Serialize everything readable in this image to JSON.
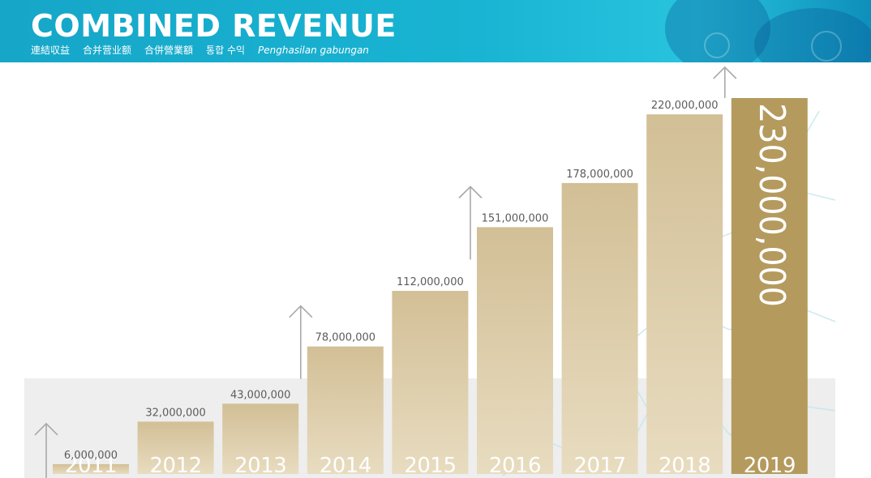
{
  "header": {
    "title": "COMBINED REVENUE",
    "subtitles": [
      "連結収益",
      "合并营业额",
      "合併營業額",
      "통합 수익",
      "Penghasilan gabungan"
    ]
  },
  "colors": {
    "banner": "#19b4d3",
    "bar_light": "#e8dcc0",
    "bar_dark": "#d2bf96",
    "highlight_bar": "#b59a5e",
    "label_text": "#5c5c5c",
    "year_text": "#ffffff",
    "band": "#eeeeee"
  },
  "chart_data": {
    "type": "bar",
    "title": "COMBINED REVENUE",
    "categories": [
      "2011",
      "2012",
      "2013",
      "2014",
      "2015",
      "2016",
      "2017",
      "2018",
      "2019"
    ],
    "values": [
      6000000,
      32000000,
      43000000,
      78000000,
      112000000,
      151000000,
      178000000,
      220000000,
      230000000
    ],
    "data_labels": [
      "6,000,000",
      "32,000,000",
      "43,000,000",
      "78,000,000",
      "112,000,000",
      "151,000,000",
      "178,000,000",
      "220,000,000",
      "230,000,000"
    ],
    "highlight_category": "2019",
    "ylim": [
      0,
      230000000
    ],
    "grid": false,
    "legend": "none",
    "xlabel": "",
    "ylabel": ""
  }
}
